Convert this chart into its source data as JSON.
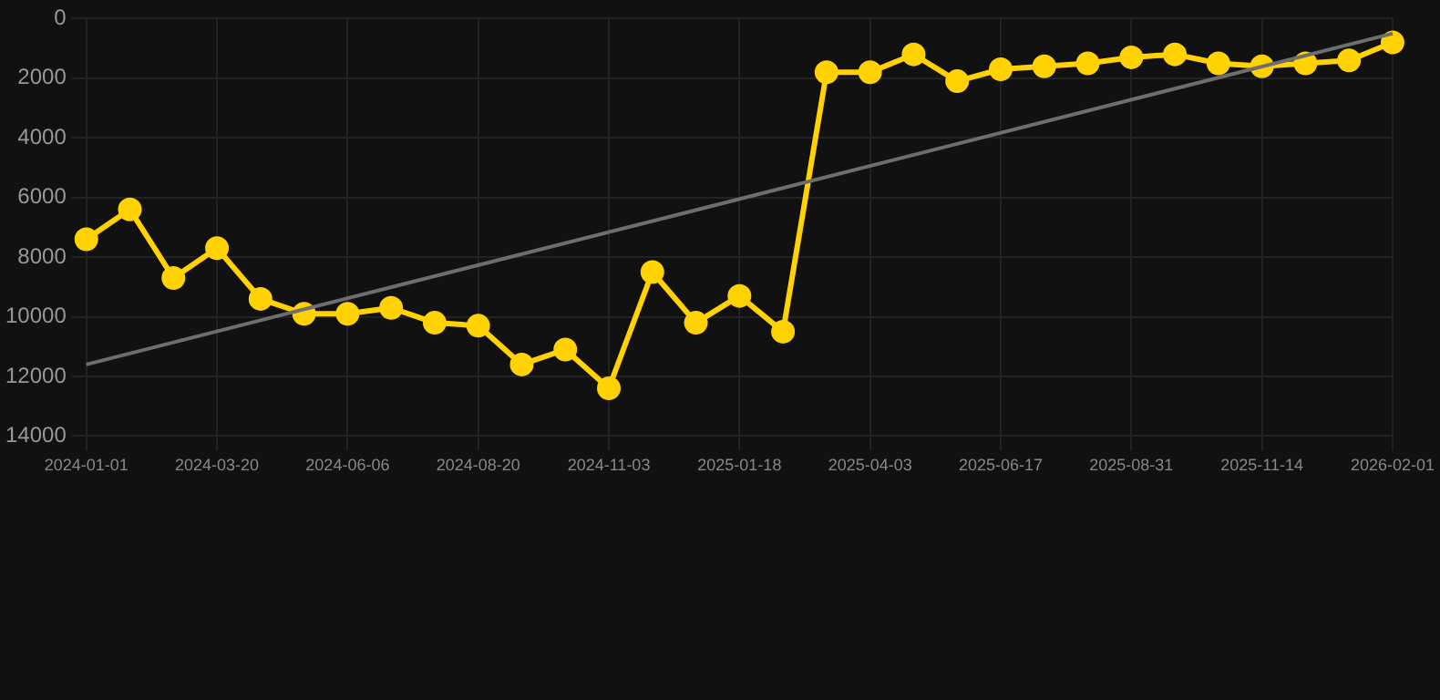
{
  "chart_data": {
    "type": "line",
    "categories": [
      "2024-01-01",
      null,
      null,
      "2024-03-20",
      null,
      null,
      "2024-06-06",
      null,
      null,
      "2024-08-20",
      null,
      null,
      "2024-11-03",
      null,
      null,
      "2025-01-18",
      null,
      null,
      "2025-04-03",
      null,
      null,
      "2025-06-17",
      null,
      null,
      "2025-08-31",
      null,
      null,
      "2025-11-14",
      null,
      null,
      "2026-02-01"
    ],
    "series": [
      {
        "color": "#ffd200",
        "marker": "circle",
        "values": [
          7400,
          6400,
          8700,
          7700,
          9400,
          9900,
          9900,
          9700,
          10200,
          10300,
          11600,
          11100,
          12400,
          8500,
          10200,
          9300,
          10500,
          1800,
          1800,
          1200,
          2100,
          1700,
          1600,
          1500,
          1300,
          1200,
          1500,
          1600,
          1500,
          1400,
          800
        ]
      },
      {
        "color": "#6e6e6e",
        "marker": "none",
        "values": [
          11600,
          null,
          null,
          null,
          null,
          null,
          null,
          null,
          null,
          null,
          null,
          null,
          null,
          null,
          null,
          null,
          null,
          null,
          null,
          null,
          null,
          null,
          null,
          null,
          null,
          null,
          null,
          null,
          null,
          null,
          500
        ]
      }
    ],
    "ylim": [
      14000,
      0
    ],
    "yticks": [
      0,
      2000,
      4000,
      6000,
      8000,
      10000,
      12000,
      14000
    ],
    "grid": true
  }
}
